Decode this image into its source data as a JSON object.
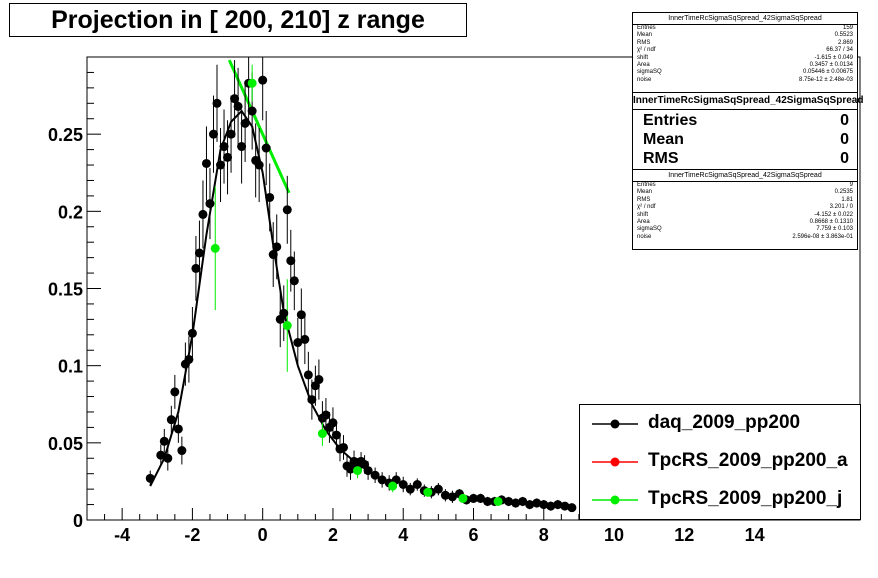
{
  "title": "Projection in [ 200, 210] z range",
  "stats_top": {
    "title": "InnerTimeRcSigmaSqSpread_42SigmaSqSpread",
    "rows": [
      {
        "k": "Entries",
        "v": "159"
      },
      {
        "k": "Mean",
        "v": "0.5523"
      },
      {
        "k": "RMS",
        "v": "2.869"
      },
      {
        "k": "χ² / ndf",
        "v": "66.37 / 34"
      },
      {
        "k": "shift",
        "v": "-1.615 ± 0.049"
      },
      {
        "k": "Area",
        "v": "0.3457 ± 0.0134"
      },
      {
        "k": "sigmaSQ",
        "v": "0.05446 ± 0.00675"
      },
      {
        "k": "noise",
        "v": "8.75e-12 ± 2.48e-03"
      }
    ]
  },
  "stats_mid": {
    "title": "InnerTimeRcSigmaSqSpread_42SigmaSqSpread",
    "rows": [
      {
        "k": "Entries",
        "v": "0"
      },
      {
        "k": "Mean",
        "v": "0"
      },
      {
        "k": "RMS",
        "v": "0"
      }
    ]
  },
  "stats_bot": {
    "title": "InnerTimeRcSigmaSqSpread_42SigmaSqSpread",
    "rows": [
      {
        "k": "Entries",
        "v": "9"
      },
      {
        "k": "Mean",
        "v": "0.2535"
      },
      {
        "k": "RMS",
        "v": "1.81"
      },
      {
        "k": "χ² / ndf",
        "v": "3.201 / 0"
      },
      {
        "k": "shift",
        "v": "-4.152 ± 0.022"
      },
      {
        "k": "Area",
        "v": "0.8668 ± 0.1310"
      },
      {
        "k": "sigmaSQ",
        "v": "7.759 ± 0.103"
      },
      {
        "k": "noise",
        "v": "2.596e-08 ± 3.863e-01"
      }
    ]
  },
  "legend": [
    {
      "label": "daq_2009_pp200",
      "color": "#000000"
    },
    {
      "label": "TpcRS_2009_pp200_a",
      "color": "#ff0000"
    },
    {
      "label": "TpcRS_2009_pp200_j",
      "color": "#00ee00"
    }
  ],
  "chart_data": {
    "type": "scatter",
    "title": "Projection in [ 200, 210] z range",
    "xlim": [
      -5,
      17
    ],
    "ylim": [
      0,
      0.3
    ],
    "x_ticks": [
      -4,
      -2,
      0,
      2,
      4,
      6,
      8,
      10,
      12,
      14
    ],
    "y_ticks": [
      0,
      0.05,
      0.1,
      0.15,
      0.2,
      0.25
    ],
    "y_tick_labels": [
      "0",
      "0.05",
      "0.1",
      "0.15",
      "0.2",
      "0.25"
    ],
    "grid": true,
    "legend_position": "bottom-right",
    "series": [
      {
        "name": "daq_2009_pp200",
        "color": "#000000",
        "points": [
          [
            -3.2,
            0.027,
            0.005
          ],
          [
            -2.9,
            0.042,
            0.007
          ],
          [
            -2.8,
            0.051,
            0.008
          ],
          [
            -2.7,
            0.04,
            0.008
          ],
          [
            -2.6,
            0.065,
            0.009
          ],
          [
            -2.5,
            0.083,
            0.011
          ],
          [
            -2.4,
            0.059,
            0.009
          ],
          [
            -2.3,
            0.045,
            0.009
          ],
          [
            -2.2,
            0.101,
            0.014
          ],
          [
            -2.1,
            0.104,
            0.015
          ],
          [
            -2.0,
            0.121,
            0.017
          ],
          [
            -1.9,
            0.163,
            0.021
          ],
          [
            -1.8,
            0.173,
            0.021
          ],
          [
            -1.7,
            0.198,
            0.022
          ],
          [
            -1.6,
            0.231,
            0.024
          ],
          [
            -1.5,
            0.205,
            0.023
          ],
          [
            -1.4,
            0.25,
            0.025
          ],
          [
            -1.3,
            0.27,
            0.025
          ],
          [
            -1.2,
            0.23,
            0.024
          ],
          [
            -1.1,
            0.242,
            0.024
          ],
          [
            -1.0,
            0.235,
            0.024
          ],
          [
            -0.9,
            0.25,
            0.025
          ],
          [
            -0.8,
            0.273,
            0.025
          ],
          [
            -0.7,
            0.268,
            0.025
          ],
          [
            -0.6,
            0.242,
            0.024
          ],
          [
            -0.5,
            0.257,
            0.025
          ],
          [
            -0.4,
            0.283,
            0.026
          ],
          [
            -0.3,
            0.265,
            0.025
          ],
          [
            -0.2,
            0.233,
            0.024
          ],
          [
            -0.1,
            0.23,
            0.024
          ],
          [
            0.0,
            0.285,
            0.026
          ],
          [
            0.1,
            0.241,
            0.024
          ],
          [
            0.2,
            0.209,
            0.022
          ],
          [
            0.3,
            0.172,
            0.021
          ],
          [
            0.4,
            0.177,
            0.021
          ],
          [
            0.5,
            0.13,
            0.018
          ],
          [
            0.6,
            0.134,
            0.018
          ],
          [
            0.7,
            0.201,
            0.022
          ],
          [
            0.8,
            0.168,
            0.02
          ],
          [
            0.9,
            0.155,
            0.019
          ],
          [
            1.0,
            0.115,
            0.016
          ],
          [
            1.1,
            0.133,
            0.017
          ],
          [
            1.2,
            0.117,
            0.016
          ],
          [
            1.3,
            0.094,
            0.015
          ],
          [
            1.4,
            0.078,
            0.013
          ],
          [
            1.5,
            0.087,
            0.013
          ],
          [
            1.6,
            0.091,
            0.013
          ],
          [
            1.7,
            0.066,
            0.011
          ],
          [
            1.8,
            0.068,
            0.011
          ],
          [
            1.9,
            0.06,
            0.01
          ],
          [
            2.0,
            0.063,
            0.01
          ],
          [
            2.1,
            0.055,
            0.009
          ],
          [
            2.2,
            0.046,
            0.008
          ],
          [
            2.3,
            0.047,
            0.008
          ],
          [
            2.4,
            0.035,
            0.007
          ],
          [
            2.5,
            0.033,
            0.007
          ],
          [
            2.6,
            0.038,
            0.007
          ],
          [
            2.7,
            0.034,
            0.006
          ],
          [
            2.8,
            0.038,
            0.006
          ],
          [
            2.9,
            0.036,
            0.006
          ],
          [
            3.0,
            0.032,
            0.006
          ],
          [
            3.2,
            0.029,
            0.005
          ],
          [
            3.4,
            0.026,
            0.005
          ],
          [
            3.6,
            0.024,
            0.005
          ],
          [
            3.8,
            0.026,
            0.005
          ],
          [
            4.0,
            0.023,
            0.005
          ],
          [
            4.2,
            0.02,
            0.004
          ],
          [
            4.4,
            0.023,
            0.004
          ],
          [
            4.6,
            0.019,
            0.004
          ],
          [
            4.8,
            0.018,
            0.004
          ],
          [
            5.0,
            0.02,
            0.004
          ],
          [
            5.2,
            0.016,
            0.004
          ],
          [
            5.4,
            0.015,
            0.004
          ],
          [
            5.6,
            0.017,
            0.003
          ],
          [
            5.8,
            0.013,
            0.003
          ],
          [
            6.0,
            0.014,
            0.003
          ],
          [
            6.2,
            0.014,
            0.003
          ],
          [
            6.4,
            0.012,
            0.003
          ],
          [
            6.6,
            0.012,
            0.003
          ],
          [
            6.8,
            0.013,
            0.003
          ],
          [
            7.0,
            0.012,
            0.003
          ],
          [
            7.2,
            0.011,
            0.003
          ],
          [
            7.4,
            0.012,
            0.003
          ],
          [
            7.6,
            0.01,
            0.003
          ],
          [
            7.8,
            0.011,
            0.003
          ],
          [
            8.0,
            0.01,
            0.003
          ],
          [
            8.2,
            0.009,
            0.003
          ],
          [
            8.4,
            0.01,
            0.003
          ],
          [
            8.6,
            0.009,
            0.002
          ],
          [
            8.8,
            0.008,
            0.002
          ]
        ],
        "fit_curve": [
          [
            -3.2,
            0.022
          ],
          [
            -2.8,
            0.04
          ],
          [
            -2.4,
            0.07
          ],
          [
            -2.0,
            0.12
          ],
          [
            -1.6,
            0.185
          ],
          [
            -1.2,
            0.24
          ],
          [
            -0.9,
            0.258
          ],
          [
            -0.6,
            0.265
          ],
          [
            -0.3,
            0.255
          ],
          [
            0.0,
            0.225
          ],
          [
            0.3,
            0.178
          ],
          [
            0.6,
            0.135
          ],
          [
            1.0,
            0.1
          ],
          [
            1.4,
            0.075
          ],
          [
            1.8,
            0.058
          ],
          [
            2.2,
            0.046
          ],
          [
            2.6,
            0.038
          ],
          [
            3.0,
            0.032
          ]
        ]
      },
      {
        "name": "TpcRS_2009_pp200_j",
        "color": "#00ee00",
        "points": [
          [
            -1.35,
            0.176,
            0.04
          ],
          [
            -0.3,
            0.283,
            0.012
          ],
          [
            0.7,
            0.126,
            0.03
          ],
          [
            1.7,
            0.056,
            0.008
          ],
          [
            2.7,
            0.032,
            0.005
          ],
          [
            3.7,
            0.022,
            0.004
          ],
          [
            4.7,
            0.018,
            0.003
          ],
          [
            5.7,
            0.014,
            0.003
          ],
          [
            6.7,
            0.012,
            0.002
          ]
        ],
        "fit_line": [
          [
            -0.95,
            0.298
          ],
          [
            0.75,
            0.212
          ]
        ]
      }
    ]
  }
}
